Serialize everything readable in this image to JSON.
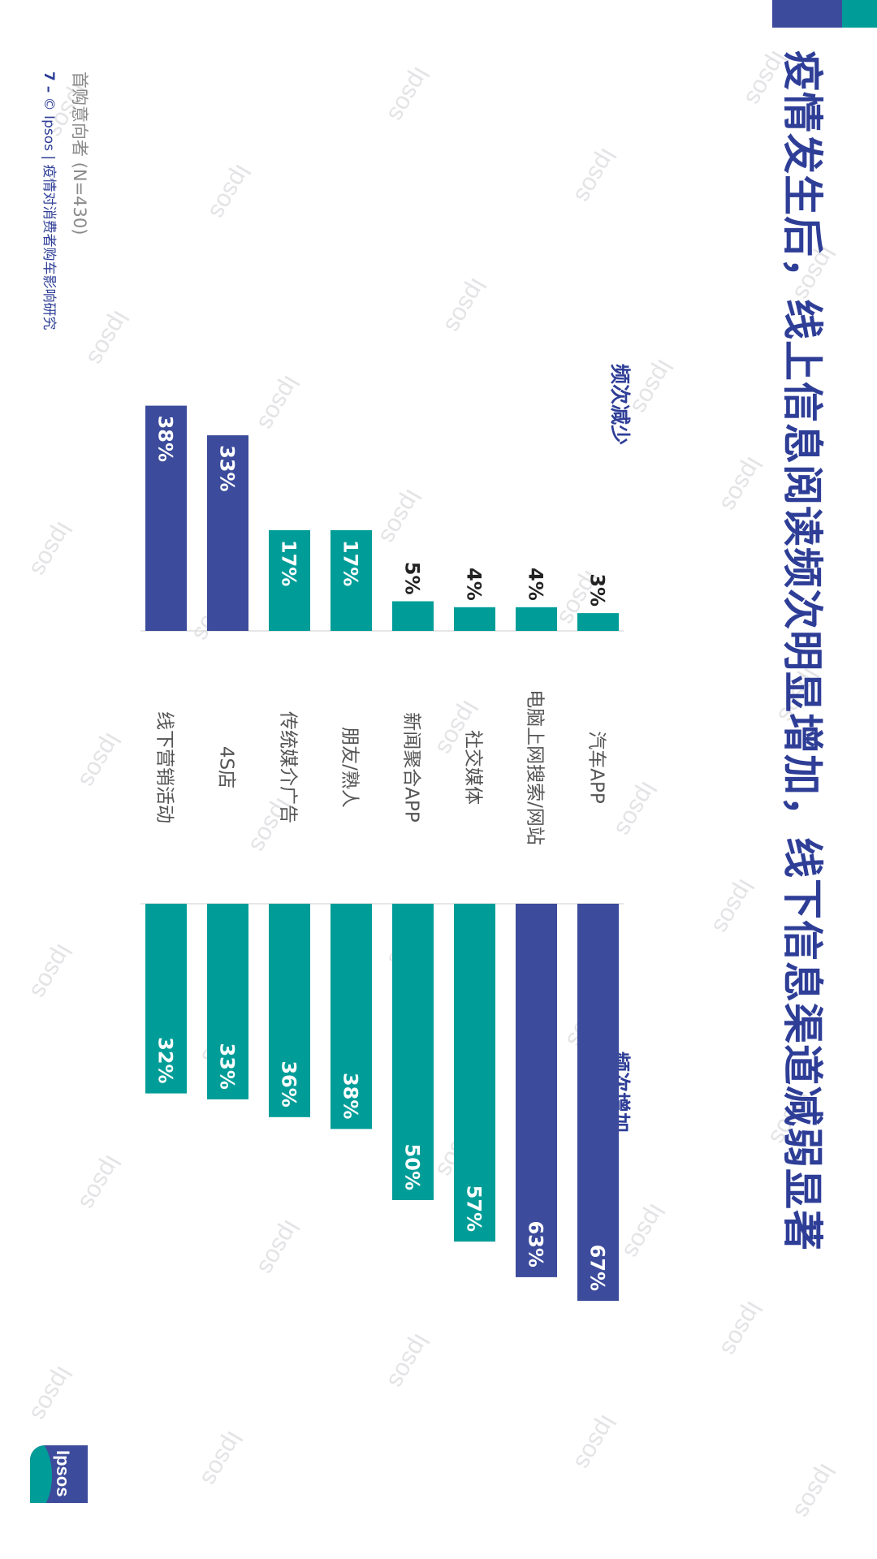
{
  "title": "疫情发生后，线上信息阅读频次明显增加，线下信息渠道减弱显著",
  "sections": {
    "decrease": "频次减少",
    "increase": "频次增加"
  },
  "footnote": "首购意向者 (N=430)",
  "footer": {
    "page_number": "7 –",
    "text": "© Ipsos | 疫情对消费者购车影响研究"
  },
  "logo_text": "Ipsos",
  "watermark_text": "Ipsos",
  "colors": {
    "primary": "#3c4b9b",
    "secondary": "#009d98",
    "title": "#2e3e97"
  },
  "chart_data": {
    "type": "bar",
    "orientation": "horizontal-diverging",
    "categories": [
      "汽车APP",
      "电脑上网搜索/网站",
      "社交媒体",
      "新闻聚合APP",
      "朋友/熟人",
      "传统媒介广告",
      "4S店",
      "线下营销活动"
    ],
    "series": [
      {
        "name": "频次减少",
        "values": [
          3,
          4,
          4,
          5,
          17,
          17,
          33,
          38
        ],
        "unit": "%"
      },
      {
        "name": "频次增加",
        "values": [
          67,
          63,
          57,
          50,
          38,
          36,
          33,
          32
        ],
        "unit": "%"
      }
    ],
    "highlight": {
      "increase": [
        0,
        1
      ],
      "decrease": [
        6,
        7
      ]
    },
    "value_labels": true,
    "xlim": [
      0,
      100
    ],
    "grid": false
  }
}
